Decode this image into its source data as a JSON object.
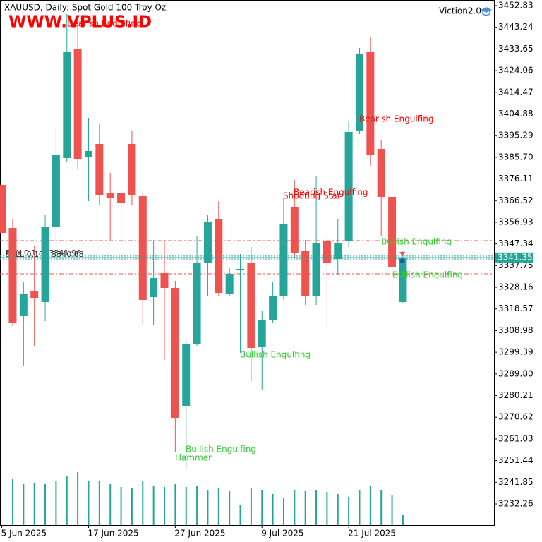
{
  "chart_data": {
    "type": "candlestick",
    "title": "XAUUSD, Daily:  Spot Gold 100 Troy Oz",
    "watermark": "WWW.VPLUS.ID",
    "indicator": "Viction2.0",
    "categories": [
      "5 Jun 2025",
      null,
      null,
      null,
      null,
      null,
      null,
      null,
      "17 Jun 2025",
      null,
      null,
      null,
      null,
      null,
      null,
      null,
      "27 Jun 2025",
      null,
      null,
      null,
      null,
      null,
      null,
      null,
      "9 Jul 2025",
      null,
      null,
      null,
      null,
      null,
      null,
      null,
      "21 Jul 2025",
      null,
      null,
      null,
      null,
      null
    ],
    "open": [
      3373.47,
      3354.42,
      3315.36,
      3326.3,
      3321.61,
      3354.73,
      3385.35,
      3433.46,
      3385.97,
      3391.6,
      3369.72,
      3369.72,
      3391.6,
      3368.48,
      3323.8,
      3334.42,
      3327.86,
      3275.69,
      3303.18,
      3338.8,
      3358.17,
      3325.36,
      3335.67,
      3339.11,
      3301.93,
      3313.8,
      3324.11,
      3363.48,
      3344.42,
      3324.42,
      3348.8,
      3340.67,
      3348.8,
      3397.53,
      3432.52,
      3389.41,
      3368.16,
      3321.61
    ],
    "high": [
      3373.47,
      3358.48,
      3330.36,
      3346.61,
      3360.04,
      3399.09,
      3449.08,
      3445.96,
      3403.16,
      3400.66,
      3378.79,
      3372.54,
      3397.53,
      3370.97,
      3349.11,
      3349.11,
      3330.99,
      3305.37,
      3350.67,
      3360.04,
      3366.29,
      3336.61,
      3342.86,
      3345.98,
      3317.86,
      3330.36,
      3367.85,
      3375.66,
      3349.11,
      3377.22,
      3352.23,
      3358.48,
      3401.59,
      3434.08,
      3438.77,
      3393.47,
      3373.16,
      3344.42
    ],
    "low": [
      3352.23,
      3310.99,
      3293.5,
      3302.24,
      3313.17,
      3347.54,
      3383.47,
      3380.35,
      3366.29,
      3364.73,
      3349.11,
      3349.11,
      3364.73,
      3311.61,
      3311.61,
      3296.0,
      3255.38,
      3247.57,
      3302.24,
      3324.11,
      3324.11,
      3324.11,
      3299.12,
      3286.63,
      3282.56,
      3312.24,
      3322.55,
      3341.29,
      3320.36,
      3320.36,
      3309.74,
      3333.49,
      3345.98,
      3395.97,
      3381.91,
      3350.67,
      3324.11,
      3320.99
    ],
    "close": [
      3352.23,
      3312.24,
      3325.36,
      3323.49,
      3354.73,
      3386.6,
      3432.21,
      3385.04,
      3388.47,
      3369.1,
      3367.85,
      3365.35,
      3369.1,
      3322.55,
      3332.24,
      3327.86,
      3270.07,
      3302.87,
      3338.8,
      3356.92,
      3325.67,
      3334.11,
      3336.3,
      3301.31,
      3313.49,
      3324.11,
      3355.98,
      3343.48,
      3324.42,
      3347.54,
      3338.8,
      3347.86,
      3396.91,
      3431.59,
      3386.91,
      3368.16,
      3337.24,
      3341.35
    ],
    "volume": [
      null,
      65,
      58,
      60,
      58,
      62,
      70,
      75,
      62,
      62,
      58,
      54,
      52,
      62,
      56,
      54,
      58,
      54,
      55,
      50,
      52,
      48,
      28,
      52,
      50,
      44,
      38,
      50,
      48,
      50,
      47,
      44,
      40,
      50,
      56,
      50,
      42,
      14
    ],
    "up_color": "#26a69a",
    "down_color": "#ef5350",
    "ylim": [
      3222.89,
      3455.33
    ],
    "yticks": [
      3452.83,
      3443.24,
      3433.65,
      3424.06,
      3414.47,
      3404.88,
      3395.29,
      {
        "value": 3385.7,
        "label": "3385.70"
      },
      3376.11,
      3366.52,
      3356.93,
      3347.34,
      3337.75,
      3328.16,
      3318.57,
      3308.98,
      3299.39,
      {
        "value": 3289.8,
        "label": "3289.80"
      },
      3280.21,
      3270.62,
      3261.03,
      3251.44,
      3241.85,
      3232.26
    ],
    "last_price": 3341.35,
    "levels": [
      3348.8,
      3334.11
    ],
    "orders": [
      {
        "label": "BUY 0.1 at 3341.96",
        "value": 3341.96
      },
      {
        "label": "SELL 0.1 at 3340.68",
        "value": 3340.68
      }
    ],
    "annotations": [
      {
        "text": "Bearish Engulfing",
        "color": "#ff0000"
      },
      {
        "text": "Bearish Engulfing",
        "color": "#ff0000"
      },
      {
        "text": "Shooting Star",
        "color": "#ff0000"
      },
      {
        "text": "Bearish Engulfing",
        "color": "#ff0000"
      },
      {
        "text": "Bullish Engulfing",
        "color": "#32cd32"
      },
      {
        "text": "Bullish Engulfing",
        "color": "#32cd32"
      },
      {
        "text": "Bullish Engulfing",
        "color": "#32cd32"
      },
      {
        "text": "Bullish Engulfing",
        "color": "#32cd32"
      },
      {
        "text": "Hammer",
        "color": "#32cd32"
      }
    ]
  }
}
